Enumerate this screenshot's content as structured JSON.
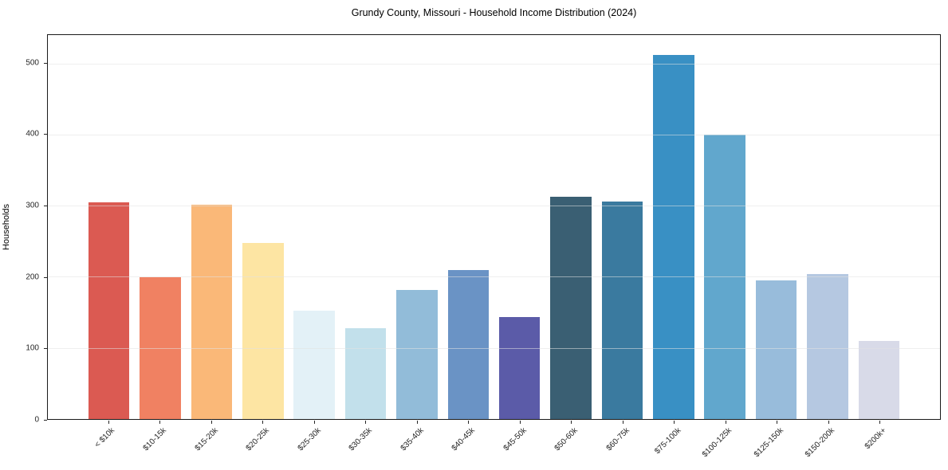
{
  "title": "Grundy County, Missouri - Household Income Distribution (2024)",
  "chart_data": {
    "type": "bar",
    "title": "Grundy County, Missouri - Household Income Distribution (2024)",
    "xlabel": "",
    "ylabel": "Households",
    "categories": [
      "< $10k",
      "$10-15k",
      "$15-20k",
      "$20-25k",
      "$25-30k",
      "$30-35k",
      "$35-40k",
      "$40-45k",
      "$45-50k",
      "$50-60k",
      "$60-75k",
      "$75-100k",
      "$100-125k",
      "$125-150k",
      "$150-200k",
      "$200k+"
    ],
    "values": [
      305,
      199,
      301,
      248,
      152,
      128,
      181,
      209,
      143,
      313,
      306,
      512,
      400,
      195,
      204,
      110
    ],
    "bar_colors": [
      "#db5a52",
      "#f08162",
      "#fab878",
      "#fde5a3",
      "#e3f1f7",
      "#c2e0eb",
      "#92bcd9",
      "#6a93c5",
      "#5b5ba8",
      "#3a5f73",
      "#3a7a9f",
      "#3990c4",
      "#61a7cd",
      "#98bcdb",
      "#b5c8e1",
      "#d8dae8"
    ],
    "yticks": [
      0,
      100,
      200,
      300,
      400,
      500
    ],
    "ylim": [
      0,
      540
    ],
    "grid": "horizontal-on-top",
    "legend": "none",
    "x_tick_rotation_deg": 45
  },
  "colors": {
    "background": "#ffffff",
    "spine": "#1a1a1a",
    "grid": "#e2e2e2",
    "tick_text": "#262626",
    "title_text": "#000000"
  },
  "layout_hints": {
    "bar_slot_units": 17.38,
    "bar_left_offset_units": 1.19,
    "bar_width_units": 0.8
  }
}
